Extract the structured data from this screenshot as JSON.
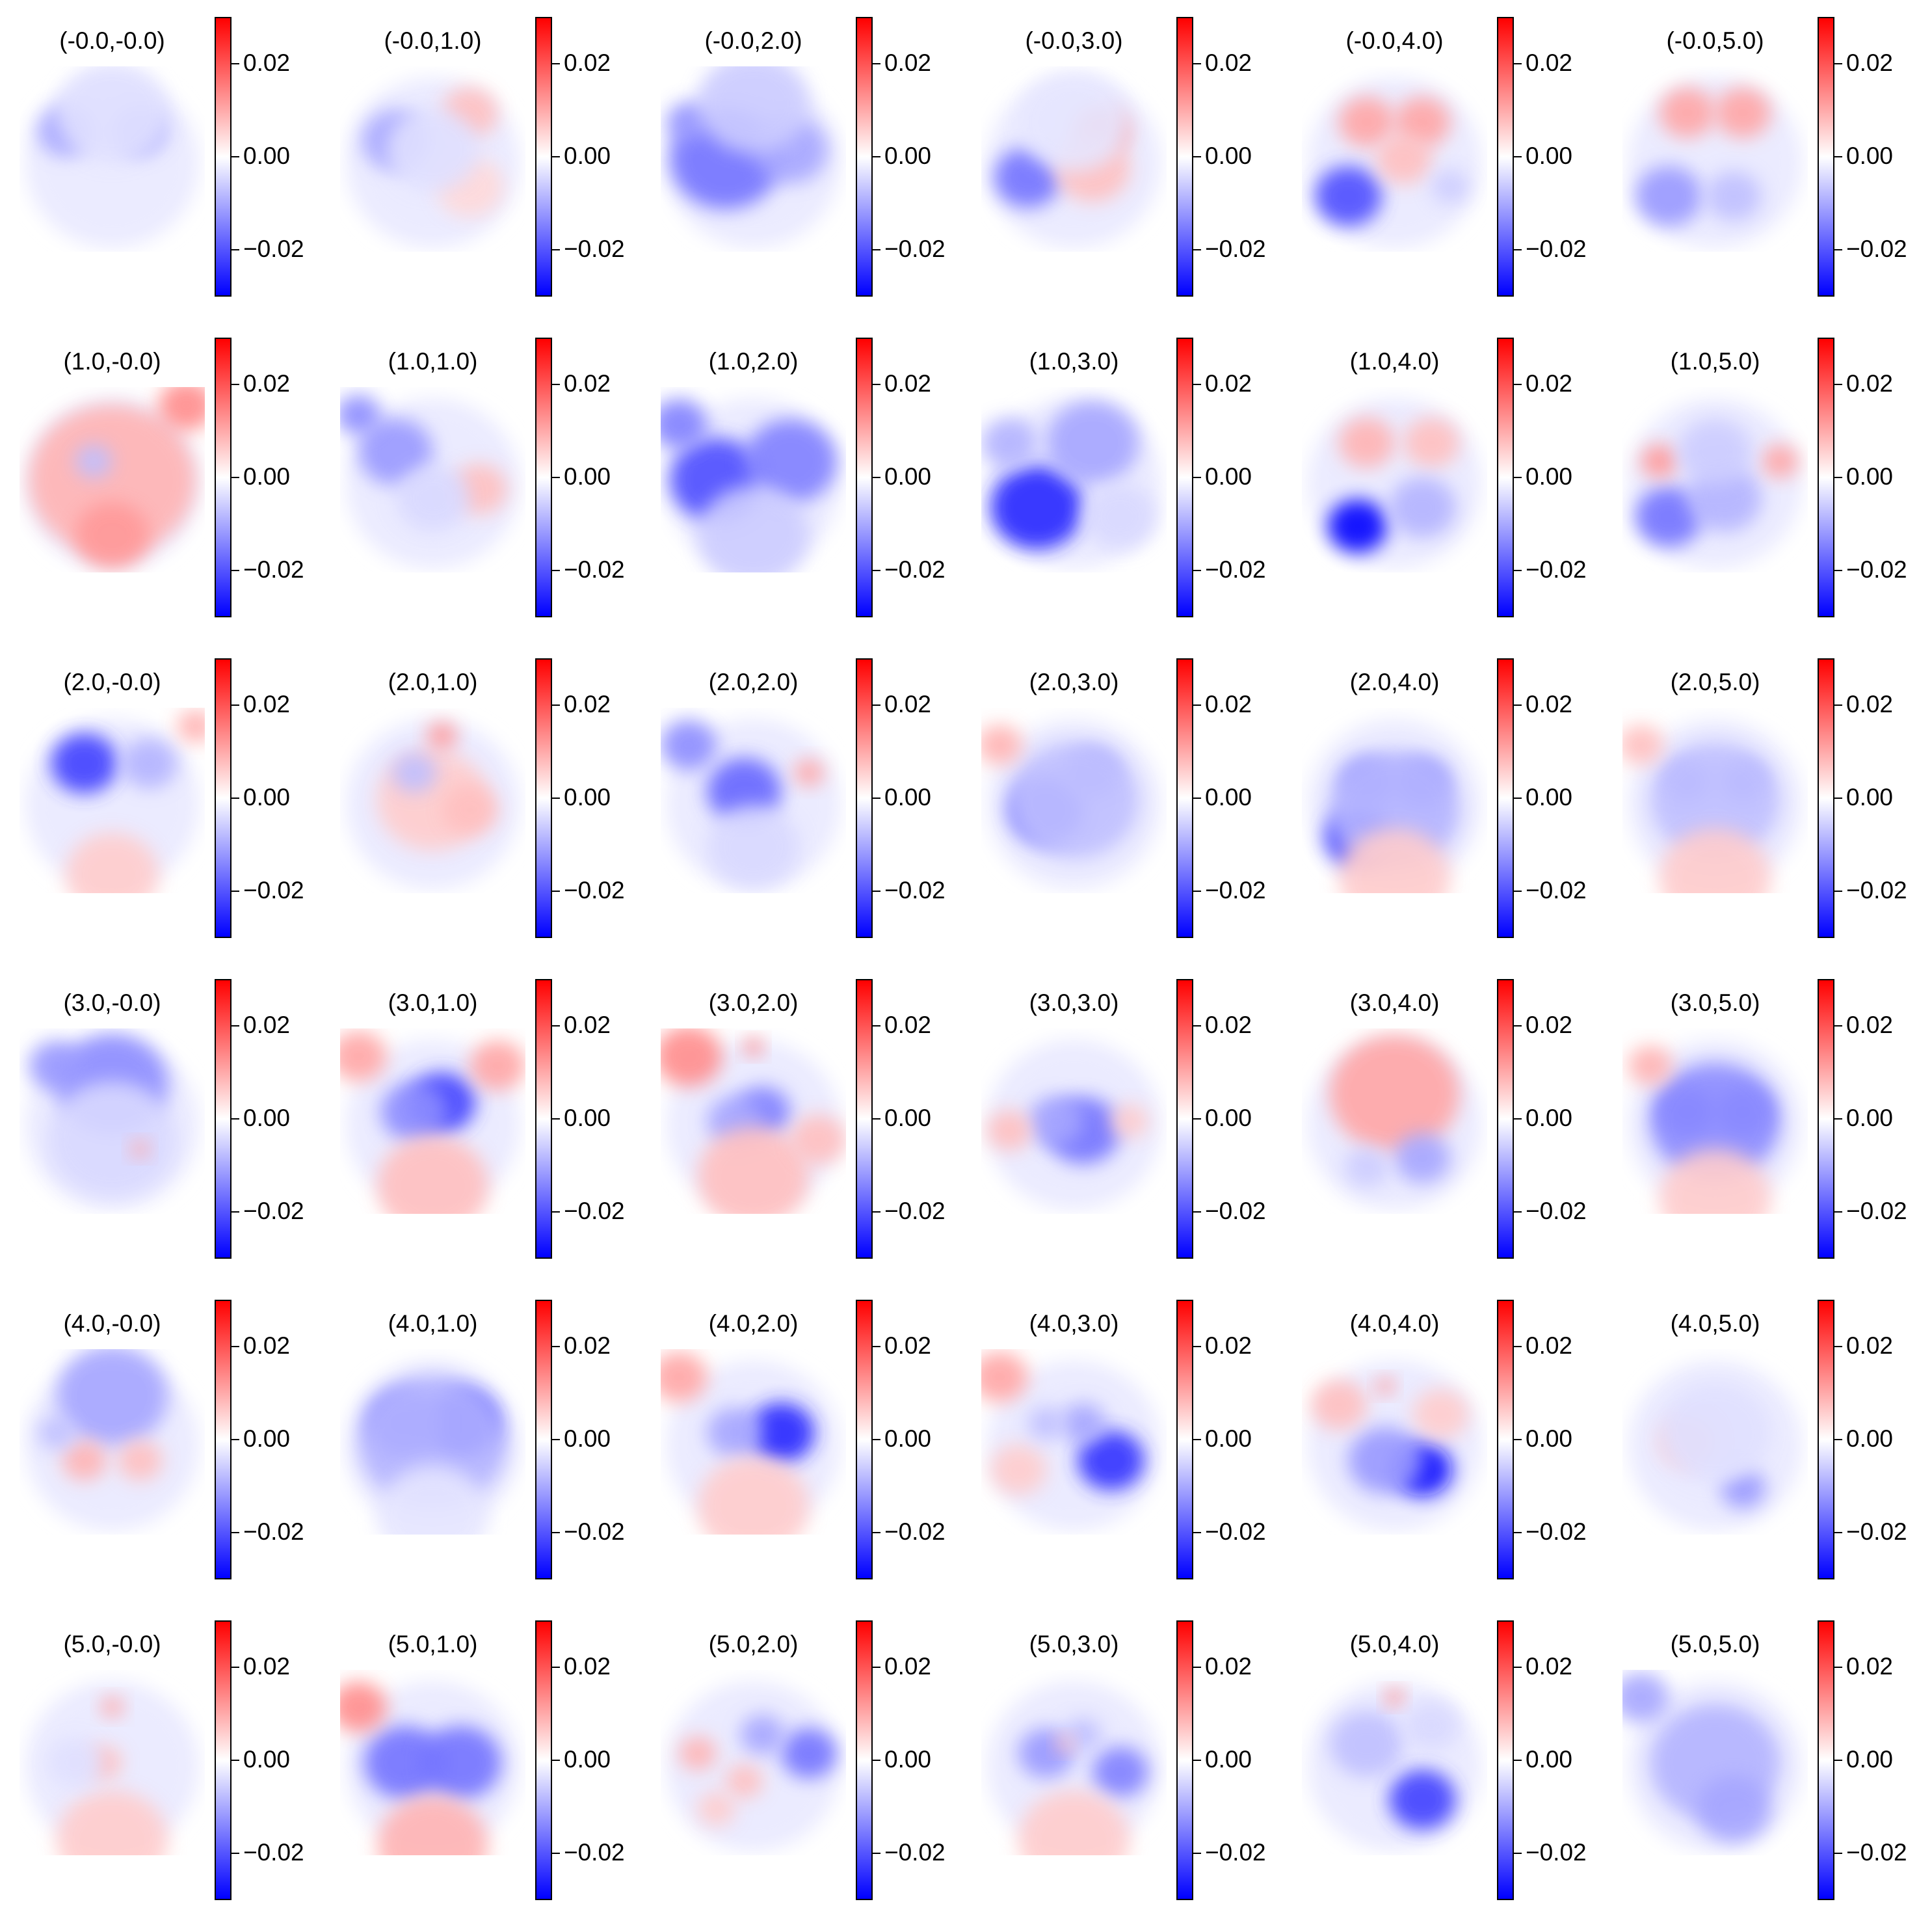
{
  "chart_data": {
    "type": "heatmap",
    "layout": {
      "rows": 6,
      "cols": 6
    },
    "colormap": {
      "low": "#0000ff",
      "mid": "#ffffff",
      "high": "#ff0000"
    },
    "colorbar": {
      "vmin": -0.03,
      "vmax": 0.03,
      "ticks": [
        0.02,
        0.0,
        -0.02
      ],
      "tick_labels": [
        "0.02",
        "0.00",
        "−0.02"
      ]
    },
    "panels": [
      {
        "title": "(-0.0,-0.0)",
        "blobs": [
          [
            0.25,
            0.35,
            0.15,
            -0.35
          ],
          [
            0.65,
            0.35,
            0.15,
            -0.3
          ],
          [
            0.5,
            0.25,
            0.3,
            -0.12
          ]
        ]
      },
      {
        "title": "(-0.0,1.0)",
        "blobs": [
          [
            0.3,
            0.4,
            0.18,
            -0.35
          ],
          [
            0.7,
            0.25,
            0.15,
            0.25
          ],
          [
            0.7,
            0.65,
            0.18,
            0.15
          ],
          [
            0.5,
            0.45,
            0.25,
            -0.12
          ]
        ]
      },
      {
        "title": "(-0.0,2.0)",
        "blobs": [
          [
            0.35,
            0.5,
            0.3,
            -0.55
          ],
          [
            0.7,
            0.45,
            0.2,
            -0.35
          ],
          [
            0.15,
            0.3,
            0.12,
            -0.4
          ],
          [
            0.5,
            0.2,
            0.3,
            -0.2
          ]
        ]
      },
      {
        "title": "(-0.0,3.0)",
        "blobs": [
          [
            0.25,
            0.6,
            0.18,
            -0.55
          ],
          [
            0.65,
            0.35,
            0.15,
            0.4
          ],
          [
            0.6,
            0.55,
            0.2,
            0.25
          ],
          [
            0.5,
            0.3,
            0.3,
            -0.1
          ]
        ]
      },
      {
        "title": "(-0.0,4.0)",
        "blobs": [
          [
            0.25,
            0.7,
            0.18,
            -0.7
          ],
          [
            0.35,
            0.3,
            0.15,
            0.35
          ],
          [
            0.65,
            0.3,
            0.15,
            0.35
          ],
          [
            0.55,
            0.5,
            0.15,
            0.25
          ],
          [
            0.8,
            0.65,
            0.1,
            -0.2
          ]
        ]
      },
      {
        "title": "(-0.0,5.0)",
        "blobs": [
          [
            0.35,
            0.25,
            0.15,
            0.35
          ],
          [
            0.65,
            0.25,
            0.15,
            0.35
          ],
          [
            0.25,
            0.7,
            0.18,
            -0.4
          ],
          [
            0.6,
            0.7,
            0.15,
            -0.25
          ]
        ]
      },
      {
        "title": "(1.0,-0.0)",
        "blobs": [
          [
            0.5,
            0.5,
            0.45,
            0.3
          ],
          [
            0.5,
            0.8,
            0.2,
            0.4
          ],
          [
            0.4,
            0.4,
            0.1,
            -0.25
          ],
          [
            0.9,
            0.1,
            0.15,
            0.45
          ]
        ]
      },
      {
        "title": "(1.0,1.0)",
        "blobs": [
          [
            0.3,
            0.35,
            0.2,
            -0.4
          ],
          [
            0.1,
            0.15,
            0.12,
            -0.45
          ],
          [
            0.75,
            0.55,
            0.15,
            0.25
          ],
          [
            0.5,
            0.6,
            0.2,
            -0.15
          ]
        ]
      },
      {
        "title": "(1.0,2.0)",
        "blobs": [
          [
            0.3,
            0.5,
            0.25,
            -0.7
          ],
          [
            0.7,
            0.4,
            0.25,
            -0.5
          ],
          [
            0.1,
            0.2,
            0.15,
            -0.5
          ],
          [
            0.5,
            0.8,
            0.3,
            -0.2
          ]
        ]
      },
      {
        "title": "(1.0,3.0)",
        "blobs": [
          [
            0.3,
            0.65,
            0.25,
            -0.85
          ],
          [
            0.6,
            0.3,
            0.25,
            -0.35
          ],
          [
            0.15,
            0.3,
            0.15,
            -0.3
          ],
          [
            0.75,
            0.7,
            0.2,
            -0.15
          ]
        ]
      },
      {
        "title": "(1.0,4.0)",
        "blobs": [
          [
            0.3,
            0.75,
            0.16,
            -1.0
          ],
          [
            0.35,
            0.3,
            0.15,
            0.3
          ],
          [
            0.7,
            0.3,
            0.15,
            0.25
          ],
          [
            0.65,
            0.65,
            0.18,
            -0.3
          ]
        ]
      },
      {
        "title": "(1.0,5.0)",
        "blobs": [
          [
            0.25,
            0.7,
            0.18,
            -0.55
          ],
          [
            0.55,
            0.6,
            0.2,
            -0.3
          ],
          [
            0.2,
            0.4,
            0.1,
            0.4
          ],
          [
            0.85,
            0.4,
            0.1,
            0.35
          ],
          [
            0.5,
            0.35,
            0.2,
            -0.2
          ]
        ]
      },
      {
        "title": "(2.0,-0.0)",
        "blobs": [
          [
            0.35,
            0.3,
            0.18,
            -0.75
          ],
          [
            0.7,
            0.3,
            0.15,
            -0.3
          ],
          [
            0.5,
            0.9,
            0.25,
            0.2
          ],
          [
            0.95,
            0.1,
            0.1,
            0.3
          ]
        ]
      },
      {
        "title": "(2.0,1.0)",
        "blobs": [
          [
            0.5,
            0.5,
            0.3,
            0.2
          ],
          [
            0.4,
            0.35,
            0.12,
            -0.25
          ],
          [
            0.55,
            0.15,
            0.08,
            0.4
          ],
          [
            0.7,
            0.55,
            0.15,
            0.25
          ]
        ]
      },
      {
        "title": "(2.0,2.0)",
        "blobs": [
          [
            0.45,
            0.45,
            0.2,
            -0.6
          ],
          [
            0.15,
            0.2,
            0.15,
            -0.45
          ],
          [
            0.8,
            0.35,
            0.08,
            0.35
          ],
          [
            0.5,
            0.75,
            0.25,
            -0.15
          ]
        ]
      },
      {
        "title": "(2.0,3.0)",
        "blobs": [
          [
            0.35,
            0.55,
            0.2,
            -0.6
          ],
          [
            0.6,
            0.35,
            0.15,
            -0.35
          ],
          [
            0.5,
            0.5,
            0.35,
            -0.25
          ],
          [
            0.1,
            0.2,
            0.12,
            0.3
          ]
        ]
      },
      {
        "title": "(2.0,4.0)",
        "blobs": [
          [
            0.3,
            0.7,
            0.18,
            -0.7
          ],
          [
            0.35,
            0.4,
            0.15,
            -0.4
          ],
          [
            0.65,
            0.4,
            0.15,
            -0.4
          ],
          [
            0.5,
            0.55,
            0.35,
            -0.3
          ],
          [
            0.5,
            0.92,
            0.3,
            0.2
          ]
        ]
      },
      {
        "title": "(2.0,5.0)",
        "blobs": [
          [
            0.35,
            0.4,
            0.12,
            -0.4
          ],
          [
            0.65,
            0.4,
            0.12,
            -0.4
          ],
          [
            0.5,
            0.5,
            0.35,
            -0.25
          ],
          [
            0.1,
            0.2,
            0.12,
            0.25
          ],
          [
            0.5,
            0.92,
            0.3,
            0.2
          ]
        ]
      },
      {
        "title": "(3.0,-0.0)",
        "blobs": [
          [
            0.5,
            0.3,
            0.3,
            -0.45
          ],
          [
            0.2,
            0.2,
            0.15,
            -0.4
          ],
          [
            0.5,
            0.6,
            0.35,
            -0.15
          ],
          [
            0.65,
            0.65,
            0.05,
            0.35
          ]
        ]
      },
      {
        "title": "(3.0,1.0)",
        "blobs": [
          [
            0.55,
            0.4,
            0.18,
            -0.75
          ],
          [
            0.4,
            0.45,
            0.18,
            -0.45
          ],
          [
            0.1,
            0.15,
            0.15,
            0.35
          ],
          [
            0.5,
            0.85,
            0.3,
            0.25
          ],
          [
            0.85,
            0.2,
            0.15,
            0.35
          ]
        ]
      },
      {
        "title": "(3.0,2.0)",
        "blobs": [
          [
            0.55,
            0.45,
            0.15,
            -0.5
          ],
          [
            0.4,
            0.5,
            0.15,
            -0.35
          ],
          [
            0.15,
            0.15,
            0.18,
            0.45
          ],
          [
            0.5,
            0.1,
            0.05,
            0.5
          ],
          [
            0.5,
            0.8,
            0.3,
            0.25
          ],
          [
            0.85,
            0.6,
            0.15,
            0.25
          ]
        ]
      },
      {
        "title": "(3.0,3.0)",
        "blobs": [
          [
            0.55,
            0.55,
            0.2,
            -0.55
          ],
          [
            0.4,
            0.5,
            0.15,
            -0.35
          ],
          [
            0.15,
            0.55,
            0.12,
            0.25
          ],
          [
            0.8,
            0.5,
            0.1,
            0.2
          ]
        ]
      },
      {
        "title": "(3.0,4.0)",
        "blobs": [
          [
            0.5,
            0.35,
            0.35,
            0.35
          ],
          [
            0.65,
            0.7,
            0.15,
            -0.35
          ],
          [
            0.35,
            0.75,
            0.12,
            -0.2
          ]
        ]
      },
      {
        "title": "(3.0,5.0)",
        "blobs": [
          [
            0.35,
            0.45,
            0.15,
            -0.6
          ],
          [
            0.65,
            0.45,
            0.15,
            -0.55
          ],
          [
            0.5,
            0.5,
            0.35,
            -0.45
          ],
          [
            0.15,
            0.2,
            0.12,
            0.3
          ],
          [
            0.5,
            0.92,
            0.3,
            0.2
          ]
        ]
      },
      {
        "title": "(4.0,-0.0)",
        "blobs": [
          [
            0.5,
            0.25,
            0.3,
            -0.35
          ],
          [
            0.35,
            0.6,
            0.12,
            0.3
          ],
          [
            0.65,
            0.6,
            0.12,
            0.25
          ],
          [
            0.2,
            0.45,
            0.1,
            -0.25
          ]
        ]
      },
      {
        "title": "(4.0,1.0)",
        "blobs": [
          [
            0.65,
            0.4,
            0.2,
            -0.85
          ],
          [
            0.35,
            0.4,
            0.2,
            -0.55
          ],
          [
            0.5,
            0.5,
            0.4,
            -0.3
          ],
          [
            0.5,
            0.9,
            0.3,
            -0.1
          ]
        ]
      },
      {
        "title": "(4.0,2.0)",
        "blobs": [
          [
            0.65,
            0.45,
            0.18,
            -0.85
          ],
          [
            0.4,
            0.45,
            0.15,
            -0.35
          ],
          [
            0.1,
            0.15,
            0.15,
            0.35
          ],
          [
            0.5,
            0.85,
            0.3,
            0.2
          ]
        ]
      },
      {
        "title": "(4.0,3.0)",
        "blobs": [
          [
            0.7,
            0.6,
            0.18,
            -0.8
          ],
          [
            0.55,
            0.4,
            0.12,
            -0.35
          ],
          [
            0.1,
            0.15,
            0.15,
            0.35
          ],
          [
            0.2,
            0.65,
            0.15,
            0.2
          ],
          [
            0.35,
            0.4,
            0.1,
            -0.25
          ]
        ]
      },
      {
        "title": "(4.0,4.0)",
        "blobs": [
          [
            0.65,
            0.65,
            0.16,
            -0.95
          ],
          [
            0.45,
            0.6,
            0.2,
            -0.4
          ],
          [
            0.2,
            0.3,
            0.15,
            0.25
          ],
          [
            0.45,
            0.2,
            0.05,
            0.4
          ],
          [
            0.75,
            0.35,
            0.15,
            0.2
          ]
        ]
      },
      {
        "title": "(4.0,5.0)",
        "blobs": [
          [
            0.65,
            0.75,
            0.12,
            -0.4
          ],
          [
            0.35,
            0.5,
            0.15,
            0.2
          ],
          [
            0.5,
            0.45,
            0.3,
            -0.12
          ]
        ]
      },
      {
        "title": "(5.0,-0.0)",
        "blobs": [
          [
            0.45,
            0.5,
            0.1,
            0.25
          ],
          [
            0.5,
            0.2,
            0.06,
            0.35
          ],
          [
            0.5,
            0.92,
            0.3,
            0.2
          ],
          [
            0.3,
            0.5,
            0.15,
            -0.12
          ]
        ]
      },
      {
        "title": "(5.0,1.0)",
        "blobs": [
          [
            0.35,
            0.5,
            0.22,
            -0.55
          ],
          [
            0.65,
            0.5,
            0.22,
            -0.55
          ],
          [
            0.1,
            0.2,
            0.15,
            0.45
          ],
          [
            0.5,
            0.95,
            0.3,
            0.3
          ]
        ]
      },
      {
        "title": "(5.0,2.0)",
        "blobs": [
          [
            0.8,
            0.45,
            0.15,
            -0.55
          ],
          [
            0.55,
            0.35,
            0.12,
            -0.35
          ],
          [
            0.2,
            0.45,
            0.1,
            0.3
          ],
          [
            0.45,
            0.6,
            0.1,
            0.25
          ],
          [
            0.3,
            0.75,
            0.1,
            0.2
          ]
        ]
      },
      {
        "title": "(5.0,3.0)",
        "blobs": [
          [
            0.75,
            0.55,
            0.15,
            -0.5
          ],
          [
            0.35,
            0.45,
            0.15,
            -0.4
          ],
          [
            0.55,
            0.35,
            0.1,
            -0.25
          ],
          [
            0.45,
            0.4,
            0.05,
            0.25
          ],
          [
            0.5,
            0.92,
            0.3,
            0.2
          ]
        ]
      },
      {
        "title": "(5.0,4.0)",
        "blobs": [
          [
            0.65,
            0.7,
            0.18,
            -0.75
          ],
          [
            0.35,
            0.4,
            0.2,
            -0.25
          ],
          [
            0.5,
            0.15,
            0.05,
            0.45
          ],
          [
            0.7,
            0.3,
            0.15,
            -0.15
          ]
        ]
      },
      {
        "title": "(5.0,5.0)",
        "blobs": [
          [
            0.5,
            0.5,
            0.35,
            -0.3
          ],
          [
            0.6,
            0.75,
            0.2,
            -0.35
          ],
          [
            0.1,
            0.15,
            0.15,
            -0.35
          ]
        ]
      }
    ]
  }
}
